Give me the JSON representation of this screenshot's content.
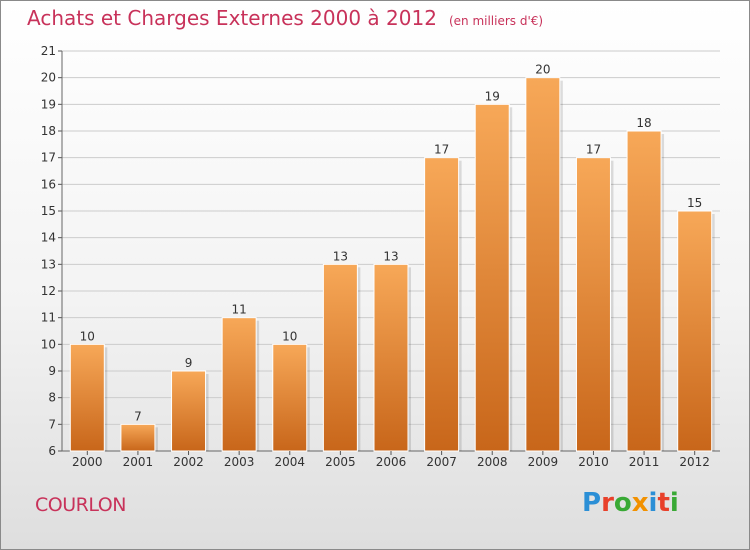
{
  "title": "Achats et Charges Externes 2000 à 2012",
  "subtitle": "(en milliers d'€)",
  "city": "COURLON",
  "logo": {
    "text": "Proxiti",
    "colors": [
      "#2b8fd6",
      "#e8402a",
      "#39a935",
      "#f29100",
      "#2b8fd6",
      "#e8402a",
      "#39a935"
    ]
  },
  "colors": {
    "bar_top": "#f7a858",
    "bar_bottom": "#c8661a",
    "title": "#c8325a",
    "grid": "#cccccc"
  },
  "chart_data": {
    "type": "bar",
    "title": "Achats et Charges Externes 2000 à 2012",
    "subtitle": "(en milliers d'€)",
    "xlabel": "",
    "ylabel": "",
    "categories": [
      "2000",
      "2001",
      "2002",
      "2003",
      "2004",
      "2005",
      "2006",
      "2007",
      "2008",
      "2009",
      "2010",
      "2011",
      "2012"
    ],
    "values": [
      10,
      7,
      9,
      11,
      10,
      13,
      13,
      17,
      19,
      20,
      17,
      18,
      15
    ],
    "ylim": [
      6,
      21
    ],
    "yticks": [
      6,
      7,
      8,
      9,
      10,
      11,
      12,
      13,
      14,
      15,
      16,
      17,
      18,
      19,
      20,
      21
    ],
    "grid": true,
    "legend": "none"
  }
}
